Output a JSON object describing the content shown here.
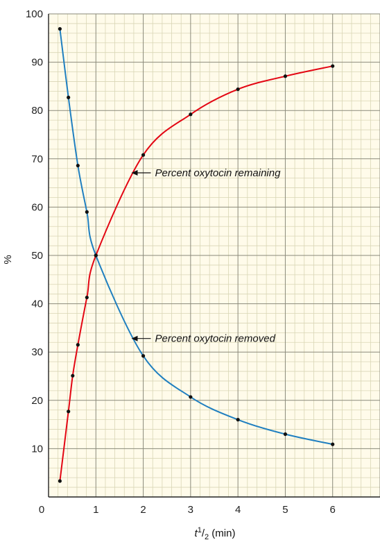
{
  "chart_data": {
    "type": "line",
    "ylabel": "%",
    "xlabel_parts": {
      "base": "t",
      "sup": "1",
      "mid": "/",
      "sub": "2",
      "unit": " (min)"
    },
    "xlim": [
      0,
      7
    ],
    "ylim": [
      0,
      100
    ],
    "x_ticks": [
      "0",
      "1",
      "2",
      "3",
      "4",
      "5",
      "6"
    ],
    "y_ticks": [
      "10",
      "20",
      "30",
      "40",
      "50",
      "60",
      "70",
      "80",
      "90",
      "100"
    ],
    "grid": true,
    "colors": {
      "background": "#fffbea",
      "grid_major": "#8a8a7a",
      "grid_minor": "#d9d6b5",
      "remaining": "#e30613",
      "removed": "#1f7fc0",
      "points": "#111111"
    },
    "series": [
      {
        "name": "Percent oxytocin remaining",
        "color": "#e30613",
        "points": [
          [
            0.24,
            3.3
          ],
          [
            0.42,
            17.7
          ],
          [
            0.51,
            25.1
          ],
          [
            0.62,
            31.5
          ],
          [
            0.81,
            41.3
          ],
          [
            1.0,
            50.0
          ],
          [
            2.0,
            70.8
          ],
          [
            3.0,
            79.2
          ],
          [
            4.0,
            84.4
          ],
          [
            5.0,
            87.1
          ],
          [
            6.0,
            89.2
          ]
        ]
      },
      {
        "name": "Percent oxytocin removed",
        "color": "#1f7fc0",
        "points": [
          [
            0.24,
            96.9
          ],
          [
            0.42,
            82.7
          ],
          [
            0.62,
            68.6
          ],
          [
            0.81,
            59.0
          ],
          [
            1.0,
            50.0
          ],
          [
            2.0,
            29.2
          ],
          [
            3.0,
            20.7
          ],
          [
            4.0,
            16.0
          ],
          [
            5.0,
            13.0
          ],
          [
            6.0,
            10.9
          ]
        ]
      }
    ],
    "annotations": [
      {
        "text": "Percent oxytocin remaining",
        "series": 0,
        "x": 1.75,
        "y": 67.1
      },
      {
        "text": "Percent oxytocin removed",
        "series": 1,
        "x": 1.75,
        "y": 32.8
      }
    ]
  }
}
